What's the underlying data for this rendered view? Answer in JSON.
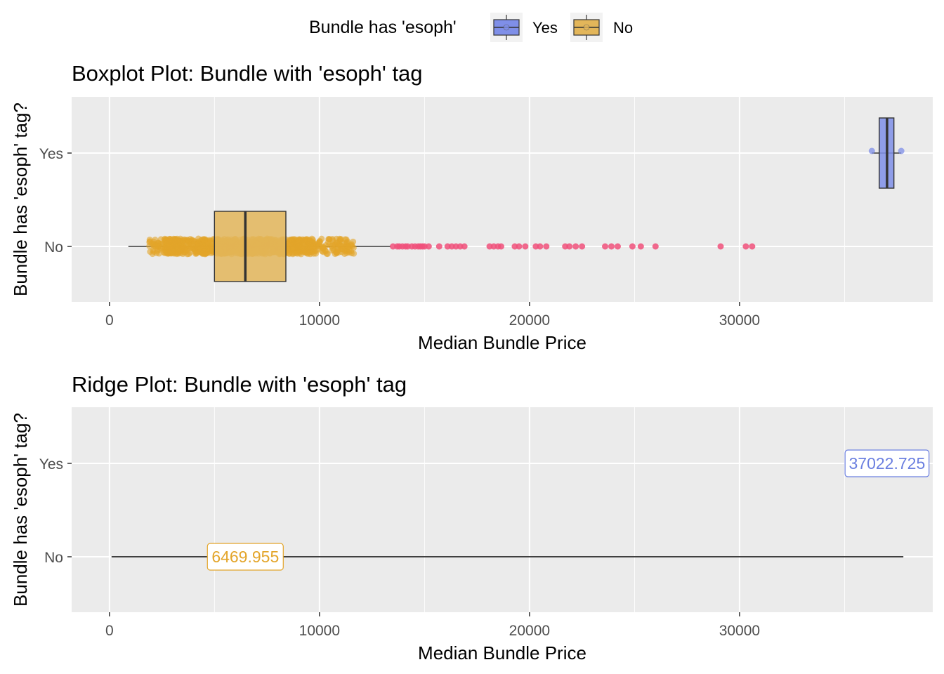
{
  "legend": {
    "title": "Bundle has 'esoph'",
    "items": [
      {
        "label": "Yes",
        "color": "#7f8fe8"
      },
      {
        "label": "No",
        "color": "#e3b65a"
      }
    ],
    "placement": "top"
  },
  "chart_data": [
    {
      "type": "boxplot",
      "title": "Boxplot Plot: Bundle with 'esoph' tag",
      "xlabel": "Median Bundle Price",
      "ylabel": "Bundle has 'esoph' tag?",
      "xlim": [
        -1800,
        39200
      ],
      "x_ticks": [
        0,
        10000,
        20000,
        30000
      ],
      "y_categories": [
        "No",
        "Yes"
      ],
      "grid": true,
      "series": [
        {
          "name": "No",
          "color": "#e3b65a",
          "point_color": "#e3a52a",
          "whisker_low": 900,
          "q1": 5000,
          "median": 6470,
          "q3": 8400,
          "whisker_high": 13400,
          "jitter_range": [
            1900,
            11700
          ],
          "outliers": [
            13500,
            13700,
            13800,
            13950,
            14100,
            14200,
            14400,
            14550,
            14700,
            14800,
            14900,
            15000,
            15200,
            15700,
            16100,
            16300,
            16500,
            16700,
            16900,
            18100,
            18300,
            18500,
            18650,
            19300,
            19500,
            19800,
            20300,
            20500,
            20800,
            21700,
            21900,
            22200,
            22500,
            23600,
            23900,
            24200,
            24900,
            25300,
            26000,
            29100,
            30300,
            30600
          ],
          "outlier_color": "#f0507a"
        },
        {
          "name": "Yes",
          "color": "#7f8fe8",
          "whisker_low": 36300,
          "q1": 36650,
          "median": 37023,
          "q3": 37350,
          "whisker_high": 37700,
          "points": [
            36300,
            37700
          ]
        }
      ]
    },
    {
      "type": "ridge",
      "title": "Ridge Plot: Bundle with 'esoph' tag",
      "xlabel": "Median Bundle Price",
      "ylabel": "Bundle has 'esoph' tag?",
      "xlim": [
        -1800,
        39200
      ],
      "x_ticks": [
        0,
        10000,
        20000,
        30000
      ],
      "y_categories": [
        "No",
        "Yes"
      ],
      "grid": true,
      "ridge_line": {
        "from": 100,
        "to": 37800,
        "category": "No"
      },
      "median_labels": [
        {
          "category": "No",
          "value": 6469.955,
          "text": "6469.955",
          "color": "#e3a52a"
        },
        {
          "category": "Yes",
          "value": 37022.725,
          "text": "37022.725",
          "color": "#6b7fe0"
        }
      ]
    }
  ]
}
